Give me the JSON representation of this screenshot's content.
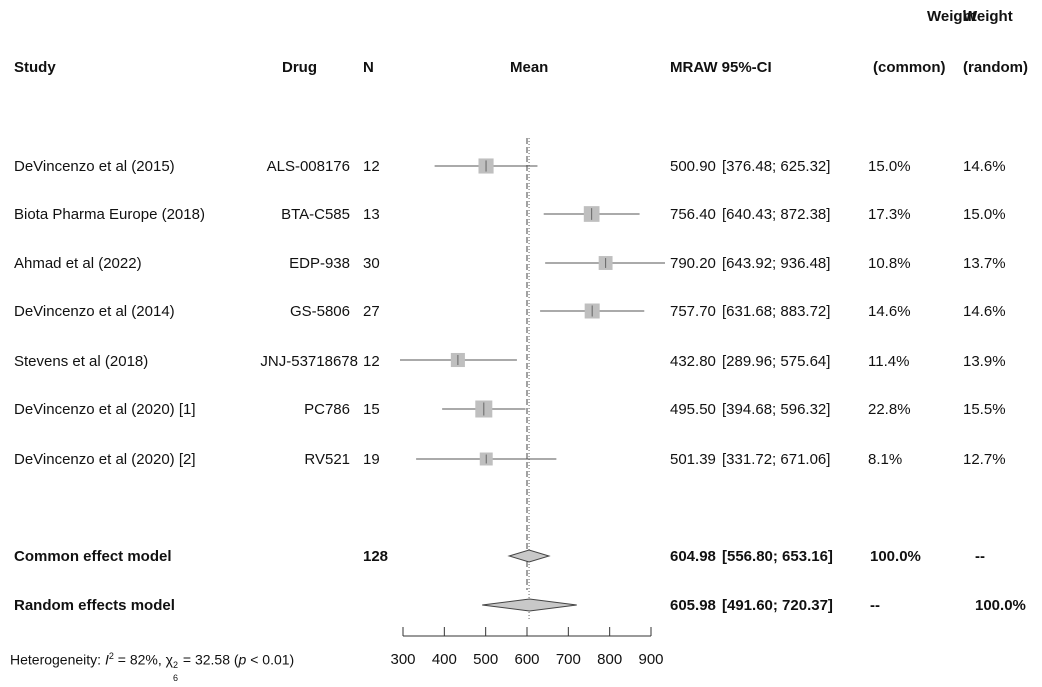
{
  "headers": {
    "study": "Study",
    "drug": "Drug",
    "n": "N",
    "mean": "Mean",
    "mraw_ci": "MRAW 95%-CI",
    "weight": "Weight",
    "common": "(common)",
    "random": "(random)"
  },
  "studies": [
    {
      "study": "DeVincenzo et al (2015)",
      "drug": "ALS-008176",
      "n": "12",
      "mraw": "500.90",
      "ci": "[376.48; 625.32]",
      "w_common": "15.0%",
      "w_random": "14.6%"
    },
    {
      "study": "Biota Pharma Europe (2018)",
      "drug": "BTA-C585",
      "n": "13",
      "mraw": "756.40",
      "ci": "[640.43; 872.38]",
      "w_common": "17.3%",
      "w_random": "15.0%"
    },
    {
      "study": "Ahmad et al (2022)",
      "drug": "EDP-938",
      "n": "30",
      "mraw": "790.20",
      "ci": "[643.92; 936.48]",
      "w_common": "10.8%",
      "w_random": "13.7%"
    },
    {
      "study": "DeVincenzo et al (2014)",
      "drug": "GS-5806",
      "n": "27",
      "mraw": "757.70",
      "ci": "[631.68; 883.72]",
      "w_common": "14.6%",
      "w_random": "14.6%"
    },
    {
      "study": "Stevens et al (2018)",
      "drug": "JNJ-53718678",
      "n": "12",
      "mraw": "432.80",
      "ci": "[289.96; 575.64]",
      "w_common": "11.4%",
      "w_random": "13.9%"
    },
    {
      "study": "DeVincenzo et al (2020) [1]",
      "drug": "PC786",
      "n": "15",
      "mraw": "495.50",
      "ci": "[394.68; 596.32]",
      "w_common": "22.8%",
      "w_random": "15.5%"
    },
    {
      "study": "DeVincenzo et al (2020) [2]",
      "drug": "RV521",
      "n": "19",
      "mraw": "501.39",
      "ci": "[331.72; 671.06]",
      "w_common": "8.1%",
      "w_random": "12.7%"
    }
  ],
  "models": [
    {
      "label": "Common effect model",
      "n": "128",
      "mraw": "604.98",
      "ci": "[556.80; 653.16]",
      "w_common": "100.0%",
      "w_random": "--"
    },
    {
      "label": "Random effects model",
      "n": "",
      "mraw": "605.98",
      "ci": "[491.60; 720.37]",
      "w_common": "--",
      "w_random": "100.0%"
    }
  ],
  "heterogeneity": {
    "prefix": "Heterogeneity: ",
    "i2_symbol": "I",
    "i2_sup": "2",
    "i2_value": " = 82%, ",
    "chi_symbol": "χ",
    "chi_sup": "2",
    "chi_sub": "6",
    "chi_value": " = 32.58 (",
    "p_symbol": "p",
    "p_value": " < 0.01)"
  },
  "chart_data": {
    "type": "forest",
    "xlim": [
      300,
      900
    ],
    "xticks": [
      300,
      400,
      500,
      600,
      700,
      800,
      900
    ],
    "reference_line": 600,
    "common_estimate": 604.98,
    "random_estimate": 605.98,
    "points": [
      {
        "est": 500.9,
        "lo": 376.48,
        "hi": 625.32,
        "weight": 15.0
      },
      {
        "est": 756.4,
        "lo": 640.43,
        "hi": 872.38,
        "weight": 17.3
      },
      {
        "est": 790.2,
        "lo": 643.92,
        "hi": 936.48,
        "weight": 10.8
      },
      {
        "est": 757.7,
        "lo": 631.68,
        "hi": 883.72,
        "weight": 14.6
      },
      {
        "est": 432.8,
        "lo": 289.96,
        "hi": 575.64,
        "weight": 11.4
      },
      {
        "est": 495.5,
        "lo": 394.68,
        "hi": 596.32,
        "weight": 22.8
      },
      {
        "est": 501.39,
        "lo": 331.72,
        "hi": 671.06,
        "weight": 8.1
      }
    ],
    "diamonds": [
      {
        "est": 604.98,
        "lo": 556.8,
        "hi": 653.16
      },
      {
        "est": 605.98,
        "lo": 491.6,
        "hi": 720.37
      }
    ],
    "colors": {
      "square": "#bfbfbf",
      "diamond": "#c8c8c8",
      "line": "#555555"
    }
  }
}
